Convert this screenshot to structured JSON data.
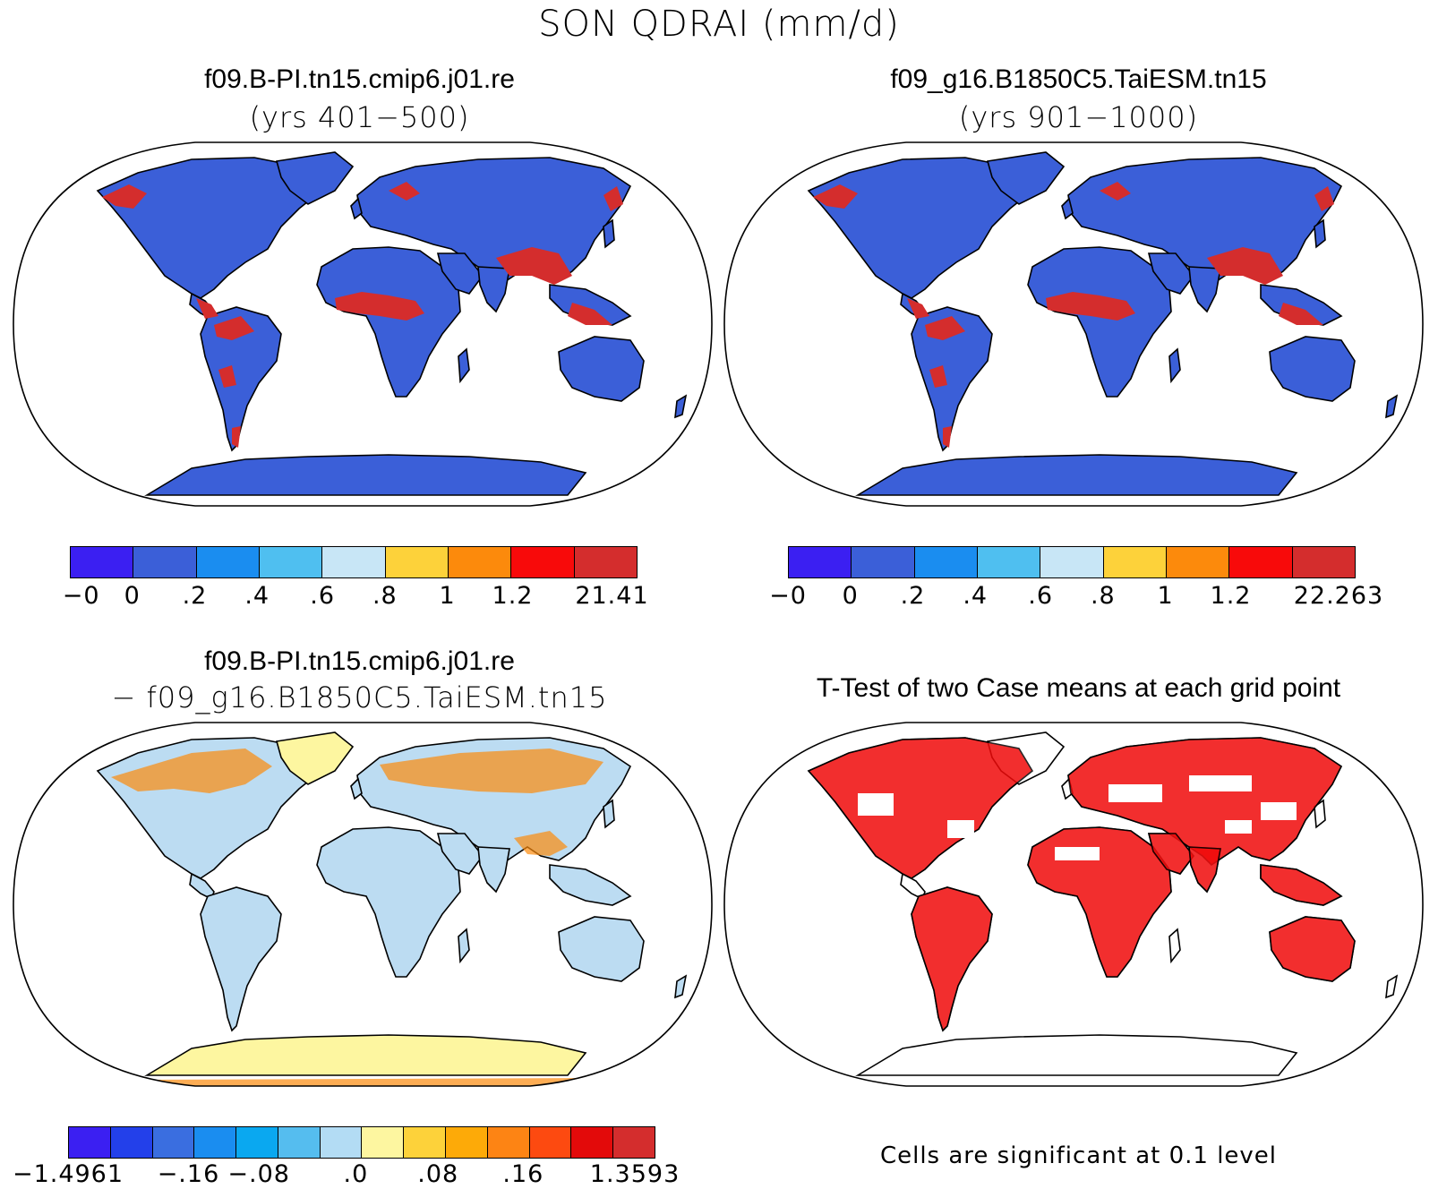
{
  "title": "SON QDRAI (mm/d)",
  "panels": [
    {
      "title": "f09.B-PI.tn15.cmip6.j01.re",
      "subtitle": "(yrs 401−500)",
      "land_color": "#3b5fd8",
      "hot_color": "#d42d2d",
      "colorbar": {
        "colors": [
          "#3b1ff2",
          "#3b5fd8",
          "#1a8df0",
          "#4fbff0",
          "#c8e6f6",
          "#fdd23a",
          "#fc8a0c",
          "#f80a0a",
          "#d42d2d"
        ],
        "labels": [
          "−0",
          "0",
          ".2",
          ".4",
          ".6",
          ".8",
          "1",
          "1.2",
          "21.41"
        ]
      }
    },
    {
      "title": "f09_g16.B1850C5.TaiESM.tn15",
      "subtitle": "(yrs 901−1000)",
      "land_color": "#3b5fd8",
      "hot_color": "#d42d2d",
      "colorbar": {
        "colors": [
          "#3b1ff2",
          "#3b5fd8",
          "#1a8df0",
          "#4fbff0",
          "#c8e6f6",
          "#fdd23a",
          "#fc8a0c",
          "#f80a0a",
          "#d42d2d"
        ],
        "labels": [
          "−0",
          "0",
          ".2",
          ".4",
          ".6",
          ".8",
          "1",
          "1.2",
          "22.263"
        ]
      }
    },
    {
      "title": "f09.B-PI.tn15.cmip6.j01.re",
      "subtitle": "− f09_g16.B1850C5.TaiESM.tn15",
      "land_color": "#bcdcf2",
      "hot_color": "#fc8a0c",
      "colorbar": {
        "colors": [
          "#3b1ff2",
          "#2340ea",
          "#3a6ee0",
          "#1a8df0",
          "#0aa8f0",
          "#55bdef",
          "#b3dcf4",
          "#fdf6a0",
          "#fdd23a",
          "#fdaa08",
          "#fd8414",
          "#fd4a10",
          "#e30a0a",
          "#d42d2d"
        ],
        "labels": [
          "−1.4961",
          "−.16",
          "−.08",
          ".0",
          ".08",
          ".16",
          "1.3593"
        ]
      }
    },
    {
      "title": "T-Test of two Case means at each grid point",
      "land_color": "#f00a0a",
      "note": "Cells are significant at 0.1 level"
    }
  ]
}
